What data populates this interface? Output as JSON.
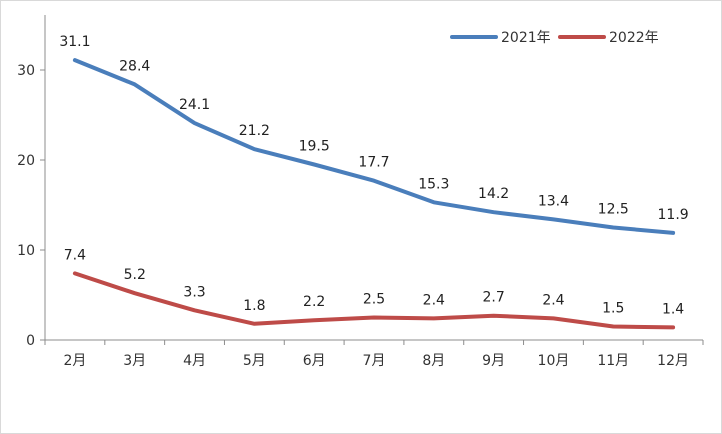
{
  "chart_data": {
    "type": "line",
    "title": "",
    "xlabel": "",
    "ylabel": "",
    "categories": [
      "2月",
      "3月",
      "4月",
      "5月",
      "6月",
      "7月",
      "8月",
      "9月",
      "10月",
      "11月",
      "12月"
    ],
    "series": [
      {
        "name": "2021年",
        "color": "#4a7ebb",
        "values": [
          31.1,
          28.4,
          24.1,
          21.2,
          19.5,
          17.7,
          15.3,
          14.2,
          13.4,
          12.5,
          11.9
        ],
        "labels": [
          "31.1",
          "28.4",
          "24.1",
          "21.2",
          "19.5",
          "17.7",
          "15.3",
          "14.2",
          "13.4",
          "12.5",
          "11.9"
        ]
      },
      {
        "name": "2022年",
        "color": "#be4b48",
        "values": [
          7.4,
          5.2,
          3.3,
          1.8,
          2.2,
          2.5,
          2.4,
          2.7,
          2.4,
          1.5,
          1.4
        ],
        "labels": [
          "7.4",
          "5.2",
          "3.3",
          "1.8",
          "2.2",
          "2.5",
          "2.4",
          "2.7",
          "2.4",
          "1.5",
          "1.4"
        ]
      }
    ],
    "ylim": [
      0,
      35
    ],
    "yticks": [
      0,
      10,
      20,
      30
    ],
    "ytick_labels": [
      "0",
      "10",
      "20",
      "30"
    ],
    "grid": false,
    "legend_position": "top-right"
  }
}
